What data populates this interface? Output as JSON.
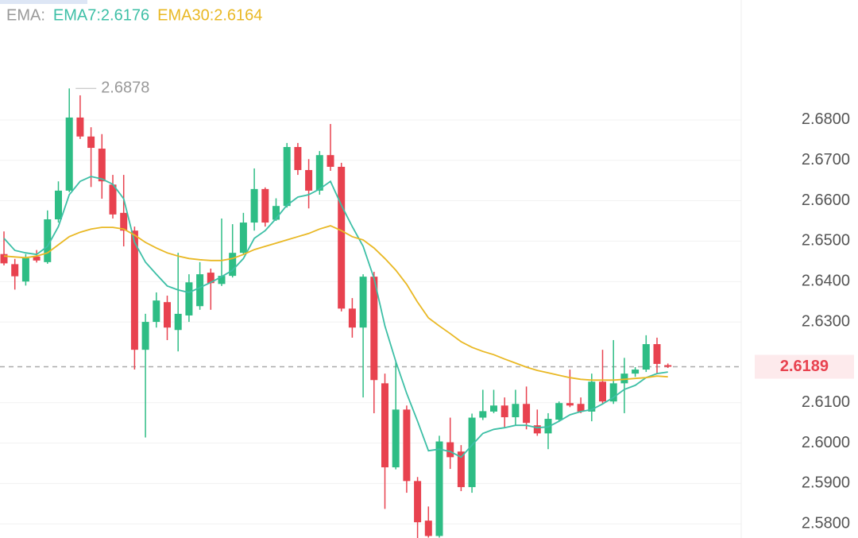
{
  "chart_data": {
    "type": "candlestick",
    "legend_title": "EMA:",
    "up_color": "#2ebd85",
    "down_color": "#e8424f",
    "grid": true,
    "open": [
      2.6468,
      2.6443,
      2.64,
      2.6462,
      2.6448,
      2.6554,
      2.6625,
      2.6806,
      2.6759,
      2.6729,
      2.664,
      2.657,
      2.6526,
      2.6231,
      2.63,
      2.6349,
      2.628,
      2.6316,
      2.6339,
      2.6422,
      2.6394,
      2.6414,
      2.6471,
      2.6546,
      2.6629,
      2.6553,
      2.6587,
      2.6733,
      2.6676,
      2.6625,
      2.6713,
      2.6684,
      2.6333,
      2.6286,
      2.6412,
      2.6148,
      2.594,
      2.6083,
      2.5906,
      2.5808,
      2.577,
      2.6002,
      2.5979,
      2.5891,
      2.6063,
      2.6078,
      2.6093,
      2.6064,
      2.6097,
      2.6044,
      2.6024,
      2.6058,
      2.6099,
      2.6097,
      2.6078,
      2.6152,
      2.6103,
      2.6148,
      2.6172,
      2.6182,
      2.6245,
      2.6193
    ],
    "high": [
      2.6524,
      2.6456,
      2.6468,
      2.6478,
      2.6576,
      2.6648,
      2.6878,
      2.6861,
      2.6782,
      2.6765,
      2.6664,
      2.6664,
      2.6536,
      2.632,
      2.6373,
      2.6365,
      2.6471,
      2.6418,
      2.6448,
      2.6432,
      2.6556,
      2.6542,
      2.657,
      2.668,
      2.6633,
      2.6606,
      2.6743,
      2.6743,
      2.6703,
      2.6723,
      2.679,
      2.6694,
      2.6359,
      2.6418,
      2.6424,
      2.6172,
      2.6202,
      2.6093,
      2.5916,
      2.5843,
      2.6018,
      2.6063,
      2.5995,
      2.6073,
      2.6132,
      2.6132,
      2.6113,
      2.6132,
      2.614,
      2.6083,
      2.6074,
      2.6103,
      2.6182,
      2.6113,
      2.6172,
      2.6231,
      2.6255,
      2.6211,
      2.6188,
      2.6267,
      2.6261,
      2.6197
    ],
    "low": [
      2.644,
      2.638,
      2.639,
      2.6447,
      2.6444,
      2.6546,
      2.6621,
      2.6753,
      2.6634,
      2.6605,
      2.6556,
      2.6487,
      2.6182,
      2.6014,
      2.6286,
      2.6255,
      2.6227,
      2.63,
      2.633,
      2.633,
      2.6389,
      2.641,
      2.6467,
      2.6526,
      2.6536,
      2.655,
      2.6583,
      2.6664,
      2.6581,
      2.6615,
      2.6674,
      2.6326,
      2.6261,
      2.6113,
      2.6074,
      2.5837,
      2.5935,
      2.5877,
      2.5765,
      2.5766,
      2.5766,
      2.5936,
      2.5881,
      2.5877,
      2.6057,
      2.6074,
      2.6039,
      2.6044,
      2.6034,
      2.6018,
      2.5985,
      2.6054,
      2.6089,
      2.6074,
      2.6054,
      2.6097,
      2.6097,
      2.6074,
      2.6164,
      2.6176,
      2.6172,
      2.6186
    ],
    "close": [
      2.6445,
      2.6413,
      2.6458,
      2.6452,
      2.6554,
      2.6625,
      2.6806,
      2.6759,
      2.6731,
      2.6648,
      2.6566,
      2.6526,
      2.6231,
      2.63,
      2.6353,
      2.6286,
      2.632,
      2.6398,
      2.6418,
      2.6396,
      2.6414,
      2.6471,
      2.6546,
      2.6629,
      2.6546,
      2.6587,
      2.6733,
      2.6676,
      2.6625,
      2.6713,
      2.6684,
      2.6333,
      2.6286,
      2.6412,
      2.6156,
      2.594,
      2.6083,
      2.5906,
      2.5804,
      2.577,
      2.6004,
      2.5965,
      2.5891,
      2.6063,
      2.6079,
      2.6093,
      2.6064,
      2.6097,
      2.605,
      2.6024,
      2.606,
      2.6099,
      2.6093,
      2.6078,
      2.6152,
      2.6103,
      2.6148,
      2.6172,
      2.6182,
      2.6245,
      2.6196,
      2.6189
    ],
    "series": [
      {
        "name": "EMA7:2.6176",
        "color": "#3dbfa6",
        "values": [
          2.6507,
          2.6477,
          2.6471,
          2.6467,
          2.6487,
          2.6536,
          2.6615,
          2.6648,
          2.666,
          2.6654,
          2.6641,
          2.6605,
          2.6497,
          2.6448,
          2.6418,
          2.6389,
          2.6379,
          2.6373,
          2.6385,
          2.6398,
          2.6412,
          2.6428,
          2.6457,
          2.6507,
          2.6526,
          2.6556,
          2.6589,
          2.6609,
          2.6615,
          2.6629,
          2.6648,
          2.6589,
          2.6536,
          2.6487,
          2.6408,
          2.629,
          2.6202,
          2.6123,
          2.6054,
          2.5981,
          2.5985,
          2.5979,
          2.5965,
          2.5995,
          2.6024,
          2.6034,
          2.6038,
          2.6044,
          2.6044,
          2.6038,
          2.604,
          2.6054,
          2.607,
          2.6078,
          2.6083,
          2.6097,
          2.6113,
          2.6133,
          2.6143,
          2.6162,
          2.6172,
          2.6176
        ]
      },
      {
        "name": "EMA30:2.6164",
        "color": "#e9b824",
        "values": [
          2.6463,
          2.6461,
          2.6459,
          2.6463,
          2.6471,
          2.6491,
          2.6511,
          2.6522,
          2.653,
          2.6534,
          2.6534,
          2.653,
          2.6515,
          2.6497,
          2.6483,
          2.6471,
          2.6463,
          2.6457,
          2.6454,
          2.6452,
          2.6452,
          2.6457,
          2.6467,
          2.6479,
          2.6487,
          2.6495,
          2.6503,
          2.6511,
          2.6519,
          2.653,
          2.6538,
          2.6526,
          2.6511,
          2.6503,
          2.6483,
          2.6457,
          2.6428,
          2.6393,
          2.6349,
          2.631,
          2.629,
          2.6271,
          2.6251,
          2.6237,
          2.6227,
          2.6219,
          2.6208,
          2.6198,
          2.6188,
          2.618,
          2.6174,
          2.6168,
          2.6162,
          2.6158,
          2.6156,
          2.6156,
          2.6156,
          2.6158,
          2.616,
          2.6162,
          2.6166,
          2.6164
        ]
      }
    ],
    "ylim": [
      2.5765,
      2.7097
    ],
    "yticks": [
      {
        "value": 2.58,
        "label": "2.5800"
      },
      {
        "value": 2.59,
        "label": "2.5900"
      },
      {
        "value": 2.6,
        "label": "2.6000"
      },
      {
        "value": 2.61,
        "label": "2.6100"
      },
      {
        "value": 2.63,
        "label": "2.6300"
      },
      {
        "value": 2.64,
        "label": "2.6400"
      },
      {
        "value": 2.65,
        "label": "2.6500"
      },
      {
        "value": 2.66,
        "label": "2.6600"
      },
      {
        "value": 2.67,
        "label": "2.6700"
      },
      {
        "value": 2.68,
        "label": "2.6800"
      }
    ],
    "last_price": 2.6189,
    "high_label": 2.6878
  }
}
